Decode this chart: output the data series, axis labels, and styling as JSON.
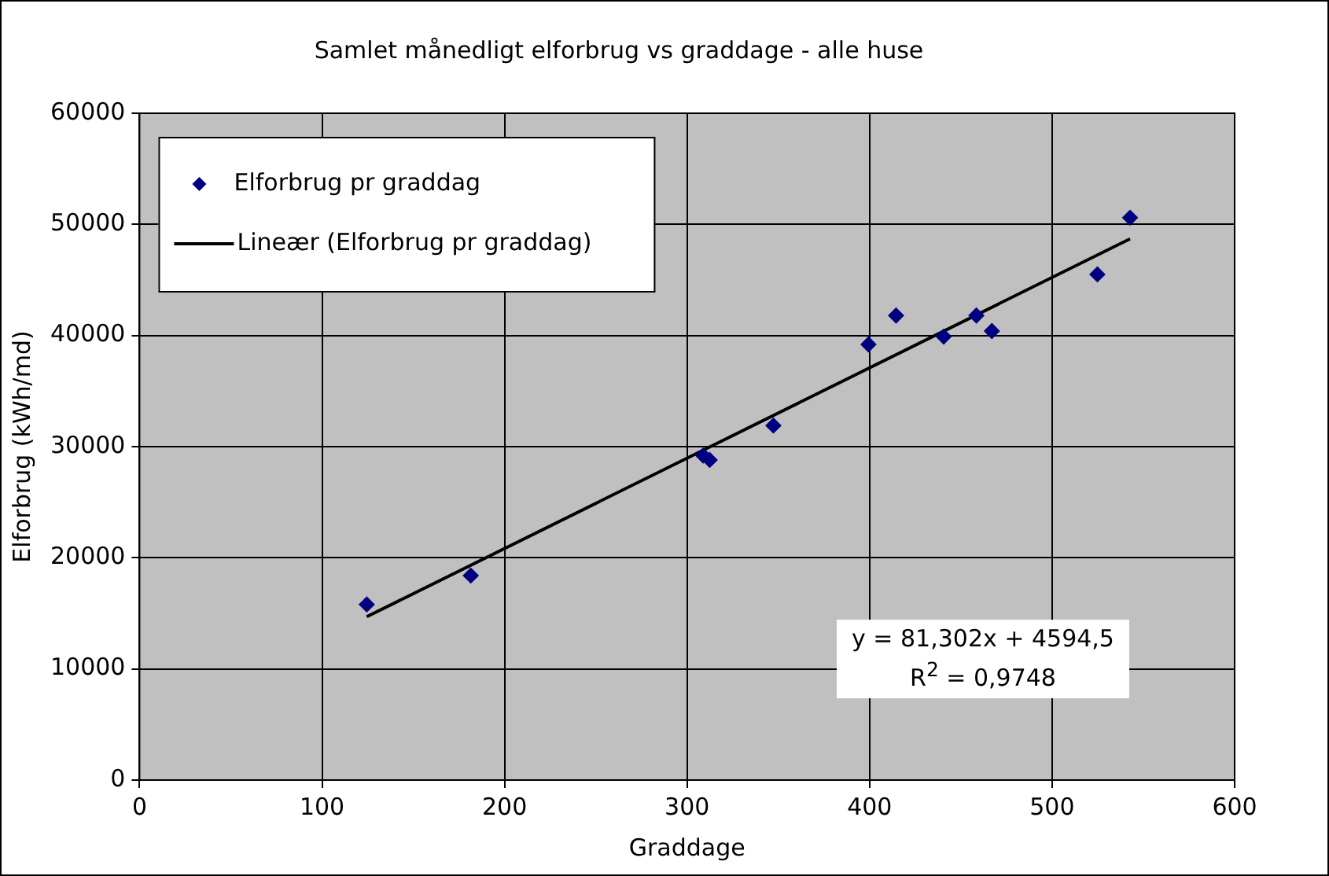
{
  "chart_data": {
    "type": "scatter",
    "title": "Samlet månedligt elforbrug vs graddage - alle huse",
    "xlabel": "Graddage",
    "ylabel": "Elforbrug (kWh/md)",
    "series": [
      {
        "name": "Elforbrug pr graddag",
        "color": "#000080",
        "marker": "diamond",
        "x": [
          124.5,
          181.5,
          308.8,
          312.4,
          347.3,
          399.4,
          414.5,
          440.6,
          458.5,
          467,
          524.8,
          542.7
        ],
        "values": [
          15800,
          18400,
          29200,
          28800,
          31900,
          39200,
          41800,
          39900,
          41800,
          40400,
          45500,
          50600
        ]
      },
      {
        "name": "Lineær (Elforbrug pr graddag)",
        "type": "line",
        "color": "#000000",
        "marker": "none",
        "x": [
          124.5,
          542.7
        ],
        "values": [
          14700,
          48700
        ]
      }
    ],
    "xlim": [
      0,
      600
    ],
    "xticks": [
      0,
      100,
      200,
      300,
      400,
      500,
      600
    ],
    "ylim": [
      0,
      60000
    ],
    "yticks": [
      0,
      10000,
      20000,
      30000,
      40000,
      50000,
      60000
    ],
    "grid": true,
    "legend": "top left",
    "annotations": [
      "y = 81,302x + 4594,5",
      "R$^{2}$ = 0,9748"
    ]
  }
}
